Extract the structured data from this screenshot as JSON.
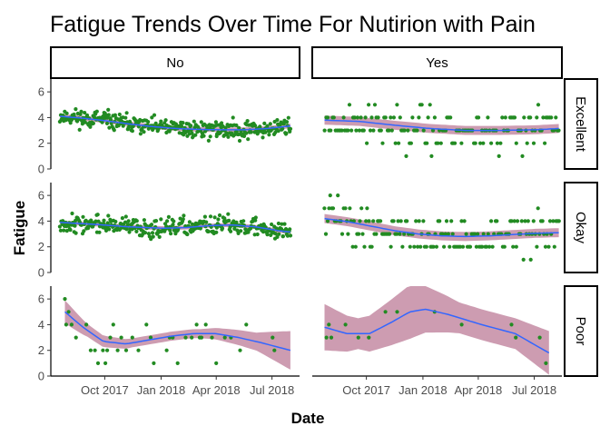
{
  "chart_data": {
    "type": "scatter",
    "title": "Fatigue Trends Over Time For Nutirion with Pain",
    "xlabel": "Date",
    "ylabel": "Fatigue",
    "facet_cols": [
      "No",
      "Yes"
    ],
    "facet_rows": [
      "Excellent",
      "Okay",
      "Poor"
    ],
    "x_range": [
      "2017-07-05",
      "2018-08-15"
    ],
    "x_ticks": [
      {
        "date": "2017-10-01",
        "label": "Oct 2017"
      },
      {
        "date": "2018-01-01",
        "label": "Jan 2018"
      },
      {
        "date": "2018-04-01",
        "label": "Apr 2018"
      },
      {
        "date": "2018-07-01",
        "label": "Jul 2018"
      }
    ],
    "ylim": [
      0,
      7
    ],
    "y_ticks": [
      0,
      2,
      4,
      6
    ],
    "grid": false,
    "colors": {
      "points": "#228b22",
      "smooth_line": "#3366ff",
      "ribbon": "#c48ba3",
      "strip_border": "#000000",
      "axis": "#000000",
      "tick_text": "#4d4d4d"
    },
    "panels": [
      {
        "row": "Excellent",
        "col": "No",
        "x_start": "2017-07-20",
        "x_end": "2018-07-31",
        "density": 350,
        "noise": 0.42,
        "noise_shape": "cont",
        "seed": 11,
        "ymin": 1.4,
        "ymax": 5.3,
        "smooth": [
          [
            0,
            4.1
          ],
          [
            0.1,
            3.95
          ],
          [
            0.2,
            3.75
          ],
          [
            0.3,
            3.5
          ],
          [
            0.4,
            3.3
          ],
          [
            0.5,
            3.15
          ],
          [
            0.6,
            3.08
          ],
          [
            0.7,
            3.05
          ],
          [
            0.8,
            3.05
          ],
          [
            0.9,
            3.15
          ],
          [
            1,
            3.35
          ]
        ],
        "band": 0.18
      },
      {
        "row": "Excellent",
        "col": "Yes",
        "x_start": "2017-07-25",
        "x_end": "2018-08-10",
        "density": 150,
        "noise": 1.0,
        "noise_shape": "int",
        "seed": 23,
        "ymin": 1,
        "ymax": 6,
        "smooth": [
          [
            0,
            3.8
          ],
          [
            0.15,
            3.7
          ],
          [
            0.3,
            3.4
          ],
          [
            0.45,
            3.15
          ],
          [
            0.6,
            3.0
          ],
          [
            0.75,
            3.0
          ],
          [
            0.9,
            3.05
          ],
          [
            1,
            3.15
          ]
        ],
        "band": 0.35
      },
      {
        "row": "Okay",
        "col": "No",
        "x_start": "2017-07-20",
        "x_end": "2018-07-31",
        "density": 330,
        "noise": 0.45,
        "noise_shape": "cont",
        "seed": 37,
        "ymin": 1.8,
        "ymax": 5.2,
        "smooth": [
          [
            0,
            3.9
          ],
          [
            0.15,
            3.75
          ],
          [
            0.3,
            3.55
          ],
          [
            0.45,
            3.45
          ],
          [
            0.55,
            3.5
          ],
          [
            0.65,
            3.65
          ],
          [
            0.75,
            3.7
          ],
          [
            0.85,
            3.55
          ],
          [
            0.95,
            3.25
          ],
          [
            1,
            3.15
          ]
        ],
        "band": 0.15
      },
      {
        "row": "Okay",
        "col": "Yes",
        "x_start": "2017-07-25",
        "x_end": "2018-08-10",
        "density": 160,
        "noise": 1.0,
        "noise_shape": "int",
        "seed": 41,
        "ymin": 1,
        "ymax": 6,
        "smooth": [
          [
            0,
            4.2
          ],
          [
            0.1,
            3.95
          ],
          [
            0.2,
            3.6
          ],
          [
            0.3,
            3.25
          ],
          [
            0.4,
            3.0
          ],
          [
            0.5,
            2.85
          ],
          [
            0.6,
            2.8
          ],
          [
            0.7,
            2.85
          ],
          [
            0.8,
            2.95
          ],
          [
            0.9,
            3.05
          ],
          [
            1,
            3.1
          ]
        ],
        "band": 0.35
      },
      {
        "row": "Poor",
        "col": "No",
        "x_start": "2017-07-28",
        "x_end": "2018-07-31",
        "points": [
          [
            "2017-07-28",
            6
          ],
          [
            "2017-07-30",
            4
          ],
          [
            "2017-08-03",
            5
          ],
          [
            "2017-08-08",
            4
          ],
          [
            "2017-08-15",
            3
          ],
          [
            "2017-09-01",
            4
          ],
          [
            "2017-09-08",
            2
          ],
          [
            "2017-09-15",
            2
          ],
          [
            "2017-09-20",
            1
          ],
          [
            "2017-09-28",
            2
          ],
          [
            "2017-10-02",
            1
          ],
          [
            "2017-10-05",
            2
          ],
          [
            "2017-10-10",
            3
          ],
          [
            "2017-10-15",
            4
          ],
          [
            "2017-10-22",
            2
          ],
          [
            "2017-10-28",
            3
          ],
          [
            "2017-11-05",
            2
          ],
          [
            "2017-11-15",
            3
          ],
          [
            "2017-11-25",
            2
          ],
          [
            "2017-12-08",
            4
          ],
          [
            "2017-12-15",
            3
          ],
          [
            "2017-12-20",
            1
          ],
          [
            "2018-01-10",
            2
          ],
          [
            "2018-01-15",
            3
          ],
          [
            "2018-01-20",
            3
          ],
          [
            "2018-01-28",
            1
          ],
          [
            "2018-02-10",
            3
          ],
          [
            "2018-02-20",
            3
          ],
          [
            "2018-02-28",
            4
          ],
          [
            "2018-03-05",
            3
          ],
          [
            "2018-03-08",
            3
          ],
          [
            "2018-03-15",
            4
          ],
          [
            "2018-03-25",
            3
          ],
          [
            "2018-04-01",
            1
          ],
          [
            "2018-04-15",
            3
          ],
          [
            "2018-04-25",
            3
          ],
          [
            "2018-05-10",
            2
          ],
          [
            "2018-05-20",
            4
          ],
          [
            "2018-07-02",
            3
          ],
          [
            "2018-07-05",
            2
          ]
        ],
        "smooth": [
          [
            0,
            5.0
          ],
          [
            0.08,
            3.8
          ],
          [
            0.17,
            2.7
          ],
          [
            0.27,
            2.5
          ],
          [
            0.37,
            2.8
          ],
          [
            0.47,
            3.1
          ],
          [
            0.57,
            3.3
          ],
          [
            0.67,
            3.3
          ],
          [
            0.77,
            3.0
          ],
          [
            0.87,
            2.6
          ],
          [
            1,
            2.0
          ]
        ],
        "band": [
          [
            0,
            0.9
          ],
          [
            0.1,
            0.5
          ],
          [
            0.3,
            0.35
          ],
          [
            0.6,
            0.35
          ],
          [
            0.85,
            0.7
          ],
          [
            1,
            1.5
          ]
        ]
      },
      {
        "row": "Poor",
        "col": "Yes",
        "x_start": "2017-07-25",
        "x_end": "2018-07-25",
        "points": [
          [
            "2017-07-28",
            3
          ],
          [
            "2017-08-01",
            4
          ],
          [
            "2017-08-05",
            3
          ],
          [
            "2017-08-28",
            4
          ],
          [
            "2017-09-18",
            3
          ],
          [
            "2017-10-05",
            3
          ],
          [
            "2017-11-01",
            5
          ],
          [
            "2017-11-20",
            5
          ],
          [
            "2018-01-20",
            5
          ],
          [
            "2018-03-05",
            4
          ],
          [
            "2018-05-25",
            4
          ],
          [
            "2018-06-01",
            3
          ],
          [
            "2018-07-10",
            3
          ],
          [
            "2018-07-20",
            1
          ]
        ],
        "smooth": [
          [
            0,
            3.8
          ],
          [
            0.1,
            3.3
          ],
          [
            0.2,
            3.3
          ],
          [
            0.3,
            4.2
          ],
          [
            0.38,
            5.0
          ],
          [
            0.45,
            5.2
          ],
          [
            0.55,
            4.8
          ],
          [
            0.7,
            4.0
          ],
          [
            0.85,
            3.3
          ],
          [
            1,
            1.8
          ]
        ],
        "band": [
          [
            0,
            1.8
          ],
          [
            0.15,
            1.2
          ],
          [
            0.38,
            2.1
          ],
          [
            0.6,
            1.2
          ],
          [
            0.85,
            1.2
          ],
          [
            1,
            1.7
          ]
        ]
      }
    ]
  }
}
